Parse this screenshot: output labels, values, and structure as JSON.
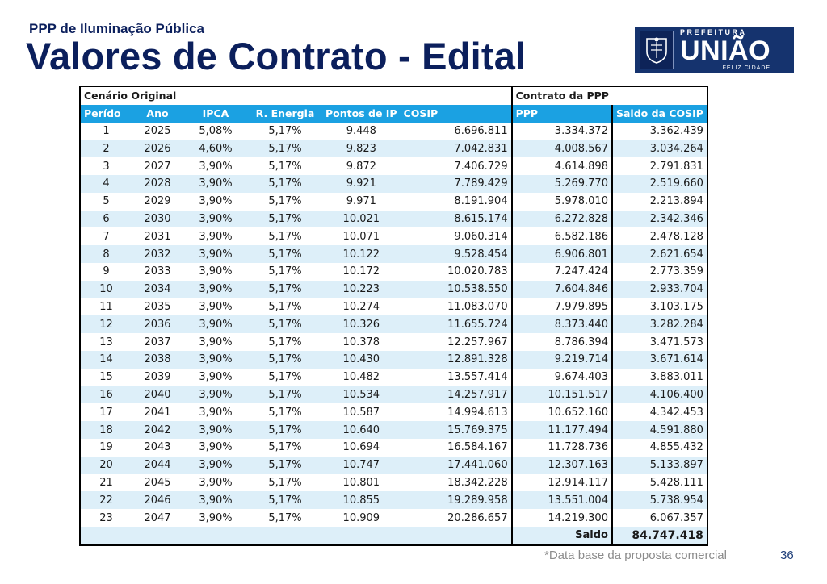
{
  "header": {
    "subtitle": "PPP de Iluminação Pública",
    "title": "Valores de Contrato - Edital"
  },
  "logo": {
    "prefeitura": "PREFEITURA",
    "name": "UNIÃO",
    "slogan": "FELIZ CIDADE",
    "crest_icon": "municipal-crest-icon"
  },
  "table": {
    "group_left": "Cenário Original",
    "group_right": "Contrato da  PPP",
    "columns": [
      "Perído",
      "Ano",
      "IPCA",
      "R. Energia",
      "Pontos de IP",
      "COSIP",
      "PPP",
      "Saldo da COSIP"
    ],
    "rows": [
      [
        "1",
        "2025",
        "5,08%",
        "5,17%",
        "9.448",
        "6.696.811",
        "3.334.372",
        "3.362.439"
      ],
      [
        "2",
        "2026",
        "4,60%",
        "5,17%",
        "9.823",
        "7.042.831",
        "4.008.567",
        "3.034.264"
      ],
      [
        "3",
        "2027",
        "3,90%",
        "5,17%",
        "9.872",
        "7.406.729",
        "4.614.898",
        "2.791.831"
      ],
      [
        "4",
        "2028",
        "3,90%",
        "5,17%",
        "9.921",
        "7.789.429",
        "5.269.770",
        "2.519.660"
      ],
      [
        "5",
        "2029",
        "3,90%",
        "5,17%",
        "9.971",
        "8.191.904",
        "5.978.010",
        "2.213.894"
      ],
      [
        "6",
        "2030",
        "3,90%",
        "5,17%",
        "10.021",
        "8.615.174",
        "6.272.828",
        "2.342.346"
      ],
      [
        "7",
        "2031",
        "3,90%",
        "5,17%",
        "10.071",
        "9.060.314",
        "6.582.186",
        "2.478.128"
      ],
      [
        "8",
        "2032",
        "3,90%",
        "5,17%",
        "10.122",
        "9.528.454",
        "6.906.801",
        "2.621.654"
      ],
      [
        "9",
        "2033",
        "3,90%",
        "5,17%",
        "10.172",
        "10.020.783",
        "7.247.424",
        "2.773.359"
      ],
      [
        "10",
        "2034",
        "3,90%",
        "5,17%",
        "10.223",
        "10.538.550",
        "7.604.846",
        "2.933.704"
      ],
      [
        "11",
        "2035",
        "3,90%",
        "5,17%",
        "10.274",
        "11.083.070",
        "7.979.895",
        "3.103.175"
      ],
      [
        "12",
        "2036",
        "3,90%",
        "5,17%",
        "10.326",
        "11.655.724",
        "8.373.440",
        "3.282.284"
      ],
      [
        "13",
        "2037",
        "3,90%",
        "5,17%",
        "10.378",
        "12.257.967",
        "8.786.394",
        "3.471.573"
      ],
      [
        "14",
        "2038",
        "3,90%",
        "5,17%",
        "10.430",
        "12.891.328",
        "9.219.714",
        "3.671.614"
      ],
      [
        "15",
        "2039",
        "3,90%",
        "5,17%",
        "10.482",
        "13.557.414",
        "9.674.403",
        "3.883.011"
      ],
      [
        "16",
        "2040",
        "3,90%",
        "5,17%",
        "10.534",
        "14.257.917",
        "10.151.517",
        "4.106.400"
      ],
      [
        "17",
        "2041",
        "3,90%",
        "5,17%",
        "10.587",
        "14.994.613",
        "10.652.160",
        "4.342.453"
      ],
      [
        "18",
        "2042",
        "3,90%",
        "5,17%",
        "10.640",
        "15.769.375",
        "11.177.494",
        "4.591.880"
      ],
      [
        "19",
        "2043",
        "3,90%",
        "5,17%",
        "10.694",
        "16.584.167",
        "11.728.736",
        "4.855.432"
      ],
      [
        "20",
        "2044",
        "3,90%",
        "5,17%",
        "10.747",
        "17.441.060",
        "12.307.163",
        "5.133.897"
      ],
      [
        "21",
        "2045",
        "3,90%",
        "5,17%",
        "10.801",
        "18.342.228",
        "12.914.117",
        "5.428.111"
      ],
      [
        "22",
        "2046",
        "3,90%",
        "5,17%",
        "10.855",
        "19.289.958",
        "13.551.004",
        "5.738.954"
      ],
      [
        "23",
        "2047",
        "3,90%",
        "5,17%",
        "10.909",
        "20.286.657",
        "14.219.300",
        "6.067.357"
      ]
    ],
    "total_label": "Saldo",
    "total_value": "84.747.418"
  },
  "footer": {
    "note": "*Data base da proposta comercial",
    "page_number": "36"
  },
  "colors": {
    "title": "#0b1f5c",
    "header_fill": "#1ba1e2",
    "band_fill": "#ddeff9",
    "logo_bg": "#15336e"
  }
}
